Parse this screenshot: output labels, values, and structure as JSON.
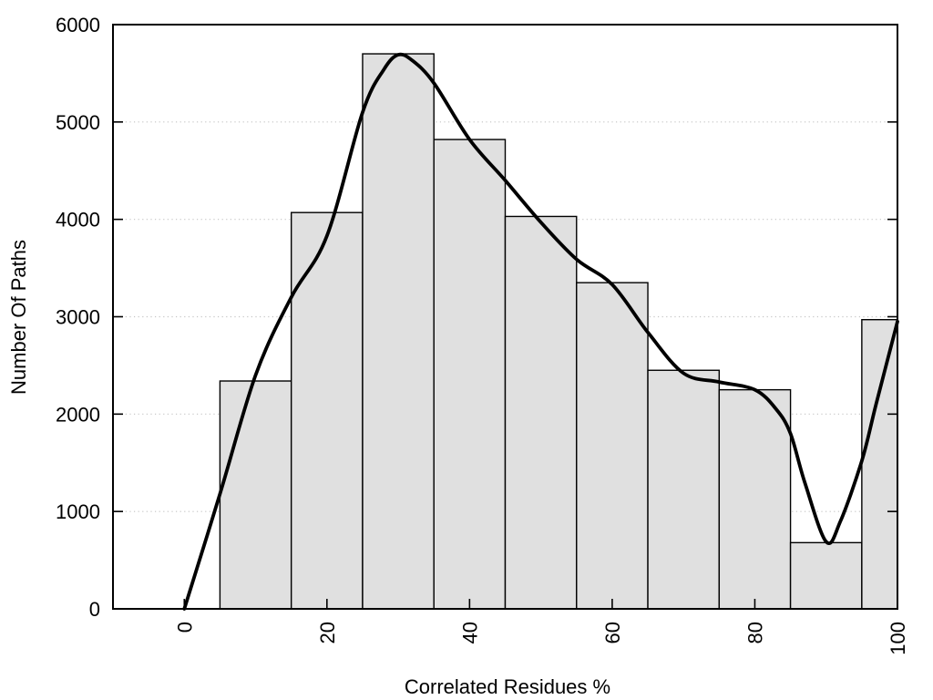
{
  "figure": {
    "background": "#ffffff"
  },
  "chart_data": {
    "type": "bar",
    "subtype": "histogram-with-smooth-density-curve",
    "title": "",
    "xlabel": "Correlated Residues %",
    "ylabel": "Number Of Paths",
    "xlim": [
      -10,
      100
    ],
    "ylim": [
      0,
      6000
    ],
    "xticks": [
      0,
      20,
      40,
      60,
      80,
      100
    ],
    "yticks": [
      0,
      1000,
      2000,
      3000,
      4000,
      5000,
      6000
    ],
    "grid": "horizontal-dotted",
    "legend": "none",
    "bars": [
      {
        "from": 5,
        "to": 15,
        "value": 2340
      },
      {
        "from": 15,
        "to": 25,
        "value": 4070
      },
      {
        "from": 25,
        "to": 35,
        "value": 5700
      },
      {
        "from": 35,
        "to": 45,
        "value": 4820
      },
      {
        "from": 45,
        "to": 55,
        "value": 4030
      },
      {
        "from": 55,
        "to": 65,
        "value": 3350
      },
      {
        "from": 65,
        "to": 75,
        "value": 2450
      },
      {
        "from": 75,
        "to": 85,
        "value": 2250
      },
      {
        "from": 85,
        "to": 95,
        "value": 680
      },
      {
        "from": 95,
        "to": 100,
        "value": 2970
      }
    ],
    "smooth_curve_points": [
      [
        0,
        0
      ],
      [
        5,
        1180
      ],
      [
        10,
        2400
      ],
      [
        15,
        3200
      ],
      [
        20,
        3830
      ],
      [
        25,
        5100
      ],
      [
        28,
        5540
      ],
      [
        30,
        5690
      ],
      [
        32,
        5630
      ],
      [
        35,
        5400
      ],
      [
        40,
        4820
      ],
      [
        45,
        4400
      ],
      [
        50,
        3970
      ],
      [
        55,
        3590
      ],
      [
        60,
        3330
      ],
      [
        65,
        2840
      ],
      [
        70,
        2420
      ],
      [
        75,
        2330
      ],
      [
        80,
        2250
      ],
      [
        83,
        2050
      ],
      [
        85,
        1800
      ],
      [
        87,
        1300
      ],
      [
        90,
        690
      ],
      [
        92,
        900
      ],
      [
        95,
        1520
      ],
      [
        97,
        2100
      ],
      [
        100,
        2950
      ]
    ],
    "colors": {
      "bar_fill": "#e0e0e0",
      "bar_stroke": "#000000",
      "curve": "#000000",
      "grid": "#c4c4c4",
      "axis": "#000000",
      "text": "#000000"
    }
  }
}
